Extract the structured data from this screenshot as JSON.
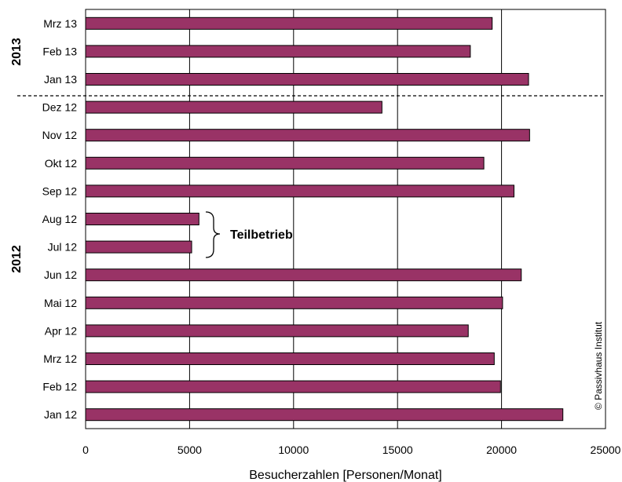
{
  "chart_data": {
    "type": "bar",
    "orientation": "horizontal",
    "categories": [
      "Mrz 13",
      "Feb 13",
      "Jan 13",
      "Dez 12",
      "Nov 12",
      "Okt 12",
      "Sep 12",
      "Aug 12",
      "Jul 12",
      "Jun 12",
      "Mai 12",
      "Apr 12",
      "Mrz 12",
      "Feb 12",
      "Jan 12"
    ],
    "values": [
      19550,
      18500,
      21300,
      14250,
      21350,
      19150,
      20600,
      5450,
      5100,
      20950,
      20050,
      18400,
      19650,
      19950,
      22950
    ],
    "xlabel": "Besucherzahlen [Personen/Monat]",
    "xlim": [
      0,
      25000
    ],
    "xticks": [
      0,
      5000,
      10000,
      15000,
      20000,
      25000
    ],
    "grid": true,
    "bar_color": "#993366",
    "year_groups": [
      "2013",
      "2012"
    ],
    "annotation": "Teilbetrieb",
    "copyright": "© Passivhaus Institut"
  }
}
